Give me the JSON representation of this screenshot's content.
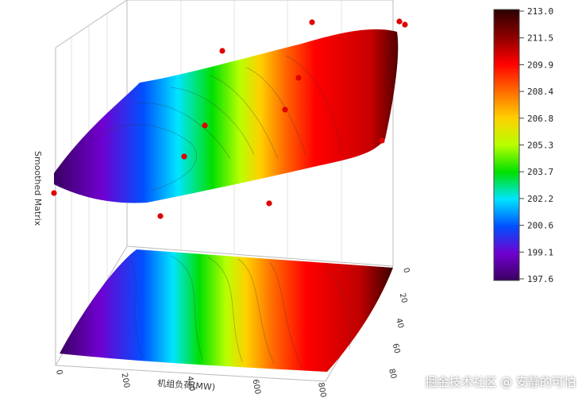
{
  "chart_data": {
    "type": "surface3d",
    "title": "",
    "xlabel": "机组负荷(MW)",
    "ylabel": "",
    "zlabel": "Smoothed Matrix",
    "z_range": [
      197.6,
      213.0
    ],
    "colorbar": {
      "ticks": [
        "213.0",
        "211.5",
        "209.9",
        "208.4",
        "206.8",
        "205.3",
        "203.7",
        "202.2",
        "200.6",
        "199.1",
        "197.6"
      ],
      "colors": [
        "#2b0000",
        "#8b0000",
        "#ff0000",
        "#ff6a00",
        "#ffd000",
        "#b8ff00",
        "#00e000",
        "#00e5ff",
        "#0050ff",
        "#7000d0",
        "#3a0060"
      ]
    },
    "x_ticks": [
      "0",
      "200",
      "400",
      "600",
      "800"
    ],
    "y_ticks": [
      "0",
      "20",
      "40",
      "60",
      "80"
    ],
    "contour_projection": true,
    "scatter_points_count": 12
  },
  "watermark": "掘金技术社区 @ 安静的可怕"
}
